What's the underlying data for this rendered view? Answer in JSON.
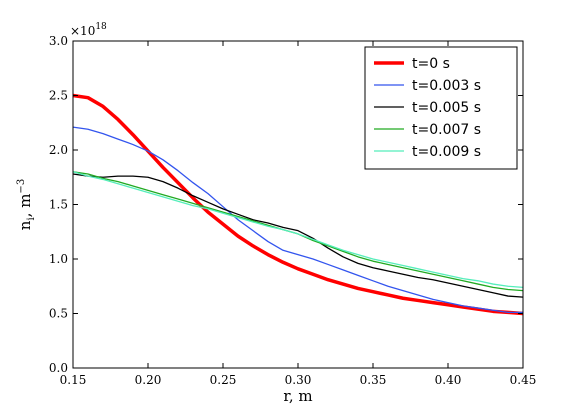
{
  "chart_data": {
    "type": "line",
    "title": "",
    "xlabel": "r, m",
    "ylabel": "n_i, m^-3",
    "ylabel_base": "n",
    "ylabel_sub": "i",
    "ylabel_mid": ",  m",
    "ylabel_sup": "−3",
    "y_multiplier_base": "×10",
    "y_multiplier_exp": "18",
    "xlim": [
      0.15,
      0.45
    ],
    "ylim": [
      0.0,
      3.0
    ],
    "x_ticks": [
      "0.15",
      "0.20",
      "0.25",
      "0.30",
      "0.35",
      "0.40",
      "0.45"
    ],
    "y_ticks": [
      "0.0",
      "0.5",
      "1.0",
      "1.5",
      "2.0",
      "2.5",
      "3.0"
    ],
    "grid": false,
    "legend_position": "top-right",
    "series": [
      {
        "name": "t=0 s",
        "color": "#ff0000",
        "line_width": "thick",
        "points": [
          [
            0.15,
            2.5
          ],
          [
            0.16,
            2.48
          ],
          [
            0.17,
            2.4
          ],
          [
            0.18,
            2.28
          ],
          [
            0.19,
            2.14
          ],
          [
            0.2,
            1.99
          ],
          [
            0.21,
            1.84
          ],
          [
            0.22,
            1.7
          ],
          [
            0.23,
            1.56
          ],
          [
            0.24,
            1.43
          ],
          [
            0.25,
            1.32
          ],
          [
            0.26,
            1.21
          ],
          [
            0.27,
            1.12
          ],
          [
            0.28,
            1.04
          ],
          [
            0.29,
            0.97
          ],
          [
            0.3,
            0.91
          ],
          [
            0.31,
            0.86
          ],
          [
            0.32,
            0.81
          ],
          [
            0.33,
            0.77
          ],
          [
            0.34,
            0.73
          ],
          [
            0.35,
            0.7
          ],
          [
            0.36,
            0.67
          ],
          [
            0.37,
            0.64
          ],
          [
            0.38,
            0.62
          ],
          [
            0.39,
            0.6
          ],
          [
            0.4,
            0.58
          ],
          [
            0.41,
            0.56
          ],
          [
            0.42,
            0.54
          ],
          [
            0.43,
            0.52
          ],
          [
            0.44,
            0.51
          ],
          [
            0.45,
            0.5
          ]
        ]
      },
      {
        "name": "t=0.003 s",
        "color": "#3355ee",
        "line_width": "thin",
        "points": [
          [
            0.15,
            2.21
          ],
          [
            0.16,
            2.19
          ],
          [
            0.17,
            2.15
          ],
          [
            0.18,
            2.1
          ],
          [
            0.19,
            2.05
          ],
          [
            0.2,
            1.99
          ],
          [
            0.21,
            1.91
          ],
          [
            0.22,
            1.81
          ],
          [
            0.23,
            1.7
          ],
          [
            0.24,
            1.6
          ],
          [
            0.25,
            1.48
          ],
          [
            0.26,
            1.36
          ],
          [
            0.27,
            1.26
          ],
          [
            0.28,
            1.16
          ],
          [
            0.29,
            1.08
          ],
          [
            0.3,
            1.04
          ],
          [
            0.31,
            1.0
          ],
          [
            0.32,
            0.95
          ],
          [
            0.33,
            0.9
          ],
          [
            0.34,
            0.85
          ],
          [
            0.35,
            0.8
          ],
          [
            0.36,
            0.75
          ],
          [
            0.37,
            0.71
          ],
          [
            0.38,
            0.67
          ],
          [
            0.39,
            0.63
          ],
          [
            0.4,
            0.6
          ],
          [
            0.41,
            0.57
          ],
          [
            0.42,
            0.55
          ],
          [
            0.43,
            0.53
          ],
          [
            0.44,
            0.51
          ],
          [
            0.45,
            0.51
          ]
        ]
      },
      {
        "name": "t=0.005 s",
        "color": "#000000",
        "line_width": "thin",
        "points": [
          [
            0.15,
            1.78
          ],
          [
            0.16,
            1.76
          ],
          [
            0.17,
            1.75
          ],
          [
            0.18,
            1.76
          ],
          [
            0.19,
            1.76
          ],
          [
            0.2,
            1.75
          ],
          [
            0.21,
            1.71
          ],
          [
            0.22,
            1.65
          ],
          [
            0.23,
            1.58
          ],
          [
            0.24,
            1.52
          ],
          [
            0.25,
            1.46
          ],
          [
            0.26,
            1.41
          ],
          [
            0.27,
            1.36
          ],
          [
            0.28,
            1.33
          ],
          [
            0.29,
            1.29
          ],
          [
            0.3,
            1.26
          ],
          [
            0.31,
            1.19
          ],
          [
            0.32,
            1.1
          ],
          [
            0.33,
            1.02
          ],
          [
            0.34,
            0.96
          ],
          [
            0.35,
            0.92
          ],
          [
            0.36,
            0.89
          ],
          [
            0.37,
            0.86
          ],
          [
            0.38,
            0.83
          ],
          [
            0.39,
            0.81
          ],
          [
            0.4,
            0.78
          ],
          [
            0.41,
            0.75
          ],
          [
            0.42,
            0.72
          ],
          [
            0.43,
            0.69
          ],
          [
            0.44,
            0.66
          ],
          [
            0.45,
            0.65
          ]
        ]
      },
      {
        "name": "t=0.007 s",
        "color": "#22aa22",
        "line_width": "thin",
        "points": [
          [
            0.15,
            1.8
          ],
          [
            0.16,
            1.78
          ],
          [
            0.17,
            1.74
          ],
          [
            0.18,
            1.71
          ],
          [
            0.19,
            1.67
          ],
          [
            0.2,
            1.63
          ],
          [
            0.21,
            1.59
          ],
          [
            0.22,
            1.55
          ],
          [
            0.23,
            1.51
          ],
          [
            0.24,
            1.47
          ],
          [
            0.25,
            1.43
          ],
          [
            0.26,
            1.39
          ],
          [
            0.27,
            1.35
          ],
          [
            0.28,
            1.31
          ],
          [
            0.29,
            1.27
          ],
          [
            0.3,
            1.23
          ],
          [
            0.31,
            1.17
          ],
          [
            0.32,
            1.12
          ],
          [
            0.33,
            1.07
          ],
          [
            0.34,
            1.02
          ],
          [
            0.35,
            0.98
          ],
          [
            0.36,
            0.95
          ],
          [
            0.37,
            0.92
          ],
          [
            0.38,
            0.89
          ],
          [
            0.39,
            0.86
          ],
          [
            0.4,
            0.83
          ],
          [
            0.41,
            0.8
          ],
          [
            0.42,
            0.77
          ],
          [
            0.43,
            0.74
          ],
          [
            0.44,
            0.72
          ],
          [
            0.45,
            0.71
          ]
        ]
      },
      {
        "name": "t=0.009 s",
        "color": "#55eebb",
        "line_width": "thin",
        "points": [
          [
            0.15,
            1.8
          ],
          [
            0.16,
            1.76
          ],
          [
            0.17,
            1.73
          ],
          [
            0.18,
            1.69
          ],
          [
            0.19,
            1.65
          ],
          [
            0.2,
            1.61
          ],
          [
            0.21,
            1.57
          ],
          [
            0.22,
            1.53
          ],
          [
            0.23,
            1.49
          ],
          [
            0.24,
            1.46
          ],
          [
            0.25,
            1.42
          ],
          [
            0.26,
            1.38
          ],
          [
            0.27,
            1.34
          ],
          [
            0.28,
            1.3
          ],
          [
            0.29,
            1.27
          ],
          [
            0.3,
            1.23
          ],
          [
            0.31,
            1.18
          ],
          [
            0.32,
            1.13
          ],
          [
            0.33,
            1.08
          ],
          [
            0.34,
            1.04
          ],
          [
            0.35,
            1.0
          ],
          [
            0.36,
            0.97
          ],
          [
            0.37,
            0.94
          ],
          [
            0.38,
            0.91
          ],
          [
            0.39,
            0.88
          ],
          [
            0.4,
            0.85
          ],
          [
            0.41,
            0.82
          ],
          [
            0.42,
            0.8
          ],
          [
            0.43,
            0.77
          ],
          [
            0.44,
            0.75
          ],
          [
            0.45,
            0.74
          ]
        ]
      }
    ]
  }
}
